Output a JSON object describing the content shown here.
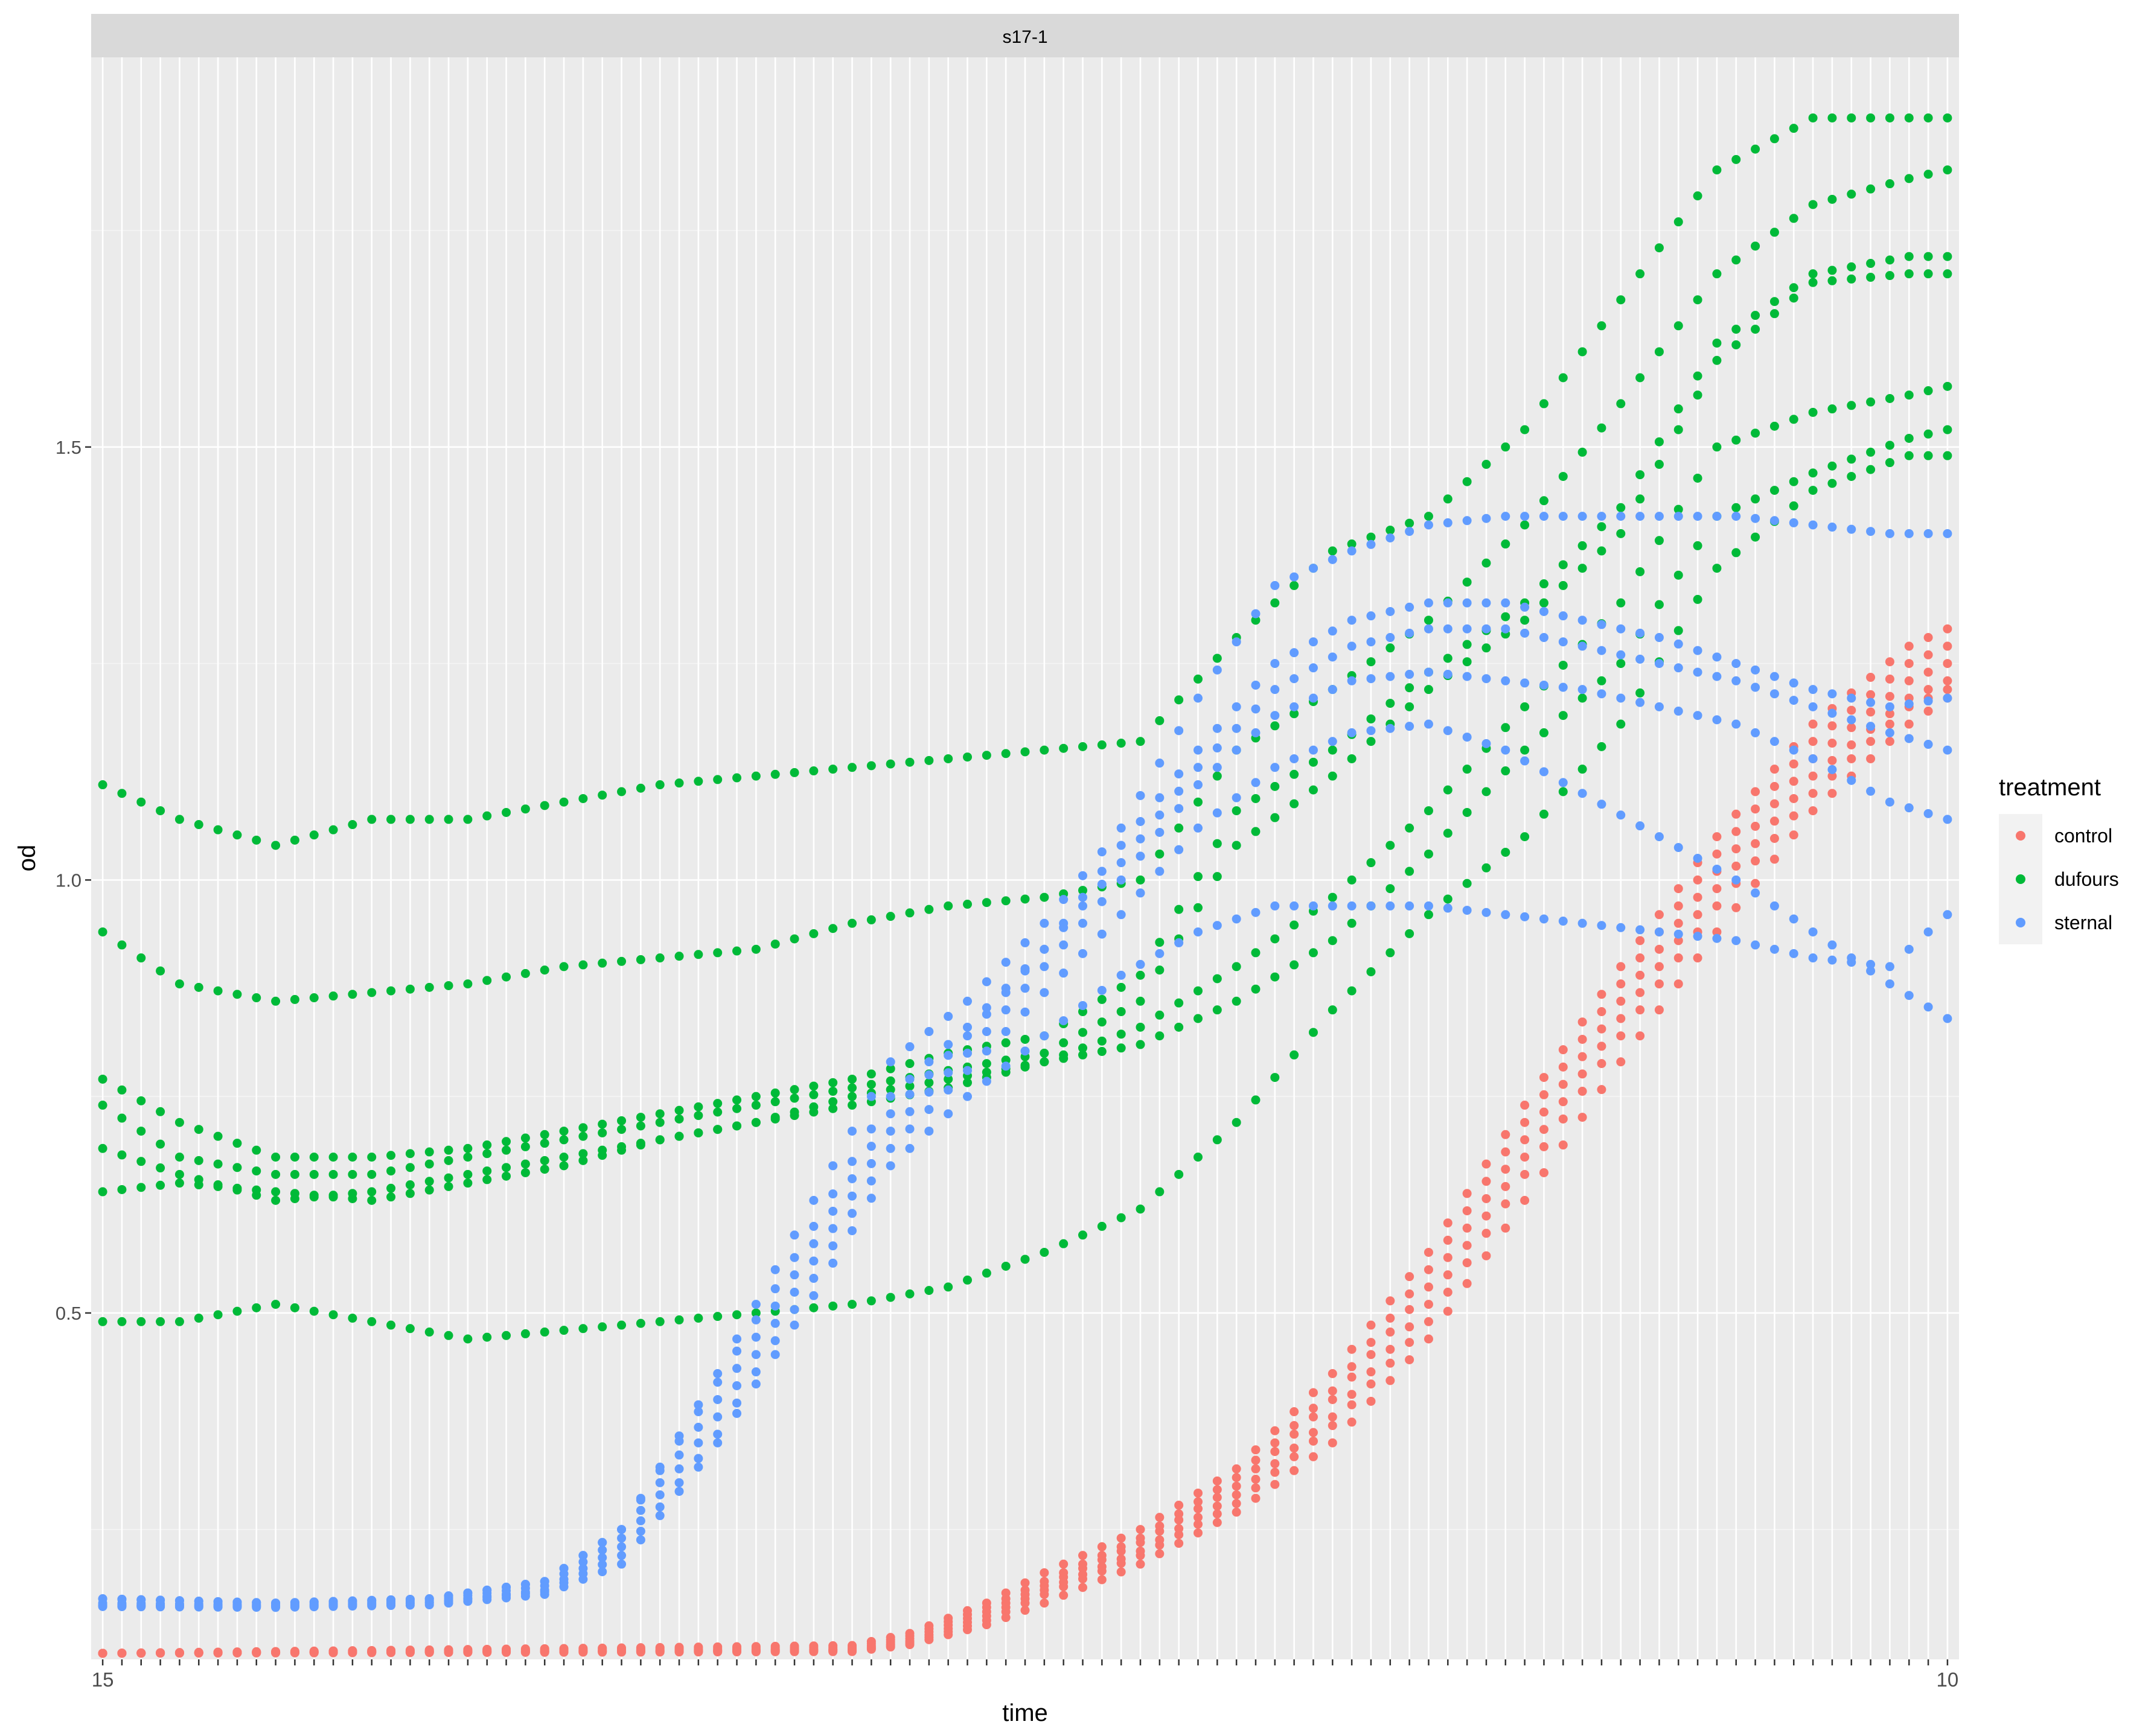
{
  "chart_data": {
    "type": "scatter",
    "facet_label": "s17-1",
    "xlabel": "time",
    "ylabel": "od",
    "x_axis_kind": "discrete",
    "x_count": 97,
    "x_tick_labels_note": "97 overlapping numeric time labels starting at 15 and ending at 10",
    "x_first": "15",
    "x_last": "10",
    "yticks": [
      0.5,
      1.0,
      1.5
    ],
    "ytick_labels": [
      "0.5",
      "1.0",
      "1.5"
    ],
    "ylim": [
      0.1,
      1.95
    ],
    "grid": true,
    "legend": {
      "title": "treatment",
      "position": "right",
      "items": [
        {
          "label": "control",
          "color": "#F8766D"
        },
        {
          "label": "dufours",
          "color": "#00BA38"
        },
        {
          "label": "sternal",
          "color": "#619CFF"
        }
      ]
    },
    "series": [
      {
        "name": "control",
        "color": "#F8766D",
        "curves": [
          {
            "x": [
              1,
              40,
              43,
              47,
              50,
              55,
              60,
              65,
              70,
              75,
              80,
              85,
              90,
              95,
              97
            ],
            "y": [
              0.107,
              0.116,
              0.13,
              0.165,
              0.2,
              0.25,
              0.32,
              0.43,
              0.57,
              0.74,
              0.9,
              1.05,
              1.18,
              1.27,
              1.29
            ]
          },
          {
            "x": [
              1,
              40,
              43,
              47,
              50,
              55,
              60,
              65,
              70,
              75,
              80,
              85,
              90,
              95,
              97
            ],
            "y": [
              0.107,
              0.114,
              0.127,
              0.16,
              0.19,
              0.24,
              0.31,
              0.41,
              0.55,
              0.72,
              0.88,
              1.03,
              1.16,
              1.25,
              1.27
            ]
          },
          {
            "x": [
              1,
              40,
              43,
              47,
              50,
              55,
              60,
              65,
              70,
              75,
              80,
              85,
              90,
              95,
              97
            ],
            "y": [
              0.107,
              0.112,
              0.124,
              0.155,
              0.185,
              0.235,
              0.3,
              0.4,
              0.53,
              0.7,
              0.86,
              1.01,
              1.14,
              1.23,
              1.25
            ]
          },
          {
            "x": [
              1,
              40,
              43,
              47,
              50,
              55,
              60,
              65,
              70,
              75,
              80,
              85,
              90,
              95,
              97
            ],
            "y": [
              0.107,
              0.111,
              0.121,
              0.15,
              0.18,
              0.225,
              0.29,
              0.38,
              0.51,
              0.68,
              0.84,
              0.99,
              1.12,
              1.21,
              1.23
            ]
          },
          {
            "x": [
              1,
              40,
              43,
              47,
              50,
              55,
              60,
              65,
              70,
              75,
              80,
              85,
              90,
              95,
              97
            ],
            "y": [
              0.107,
              0.11,
              0.119,
              0.145,
              0.175,
              0.22,
              0.28,
              0.37,
              0.49,
              0.66,
              0.82,
              0.97,
              1.1,
              1.2,
              1.22
            ]
          },
          {
            "x": [
              1,
              40,
              43,
              47,
              50,
              55,
              60,
              65,
              70,
              75,
              80,
              85,
              90,
              95,
              97
            ],
            "y": [
              0.107,
              0.109,
              0.117,
              0.14,
              0.165,
              0.21,
              0.27,
              0.35,
              0.47,
              0.63,
              0.79,
              0.94,
              1.08,
              1.18,
              1.21
            ]
          }
        ]
      },
      {
        "name": "dufours",
        "color": "#00BA38",
        "curves": [
          {
            "x": [
              1,
              5,
              10,
              15,
              20,
              25,
              30,
              35,
              40,
              45,
              50,
              55,
              60,
              65,
              70,
              75,
              80,
              85,
              90,
              95,
              97
            ],
            "y": [
              1.11,
              1.07,
              1.04,
              1.07,
              1.07,
              1.09,
              1.11,
              1.12,
              1.13,
              1.14,
              1.15,
              1.16,
              1.28,
              1.38,
              1.42,
              1.52,
              1.67,
              1.82,
              1.88,
              1.88,
              1.88
            ]
          },
          {
            "x": [
              1,
              5,
              10,
              15,
              20,
              25,
              30,
              35,
              40,
              45,
              50,
              55,
              60,
              65,
              70,
              75,
              80,
              85,
              90,
              95,
              97
            ],
            "y": [
              0.94,
              0.88,
              0.86,
              0.87,
              0.88,
              0.9,
              0.91,
              0.92,
              0.95,
              0.97,
              0.98,
              1.0,
              1.15,
              1.22,
              1.3,
              1.41,
              1.55,
              1.7,
              1.78,
              1.81,
              1.82
            ]
          },
          {
            "x": [
              1,
              5,
              10,
              15,
              20,
              25,
              30,
              35,
              40,
              45,
              50,
              55,
              60,
              65,
              70,
              75,
              80,
              85,
              90,
              95,
              97
            ],
            "y": [
              0.77,
              0.72,
              0.68,
              0.68,
              0.69,
              0.71,
              0.73,
              0.75,
              0.77,
              0.8,
              0.82,
              0.89,
              1.08,
              1.15,
              1.24,
              1.32,
              1.43,
              1.62,
              1.7,
              1.72,
              1.72
            ]
          },
          {
            "x": [
              1,
              5,
              10,
              15,
              20,
              25,
              30,
              35,
              40,
              45,
              50,
              55,
              60,
              65,
              70,
              75,
              80,
              85,
              90,
              95,
              97
            ],
            "y": [
              0.74,
              0.68,
              0.66,
              0.66,
              0.68,
              0.7,
              0.72,
              0.74,
              0.76,
              0.78,
              0.8,
              0.86,
              1.04,
              1.12,
              1.22,
              1.3,
              1.4,
              1.6,
              1.69,
              1.7,
              1.7
            ]
          },
          {
            "x": [
              1,
              5,
              10,
              15,
              20,
              25,
              30,
              35,
              40,
              45,
              50,
              55,
              60,
              65,
              70,
              75,
              80,
              85,
              90,
              95,
              97
            ],
            "y": [
              0.69,
              0.66,
              0.63,
              0.64,
              0.66,
              0.68,
              0.7,
              0.72,
              0.75,
              0.77,
              0.79,
              0.83,
              0.9,
              0.98,
              1.08,
              1.2,
              1.32,
              1.5,
              1.54,
              1.56,
              1.57
            ]
          },
          {
            "x": [
              1,
              5,
              10,
              15,
              20,
              25,
              30,
              35,
              40,
              45,
              50,
              55,
              60,
              65,
              70,
              75,
              80,
              85,
              90,
              95,
              97
            ],
            "y": [
              0.64,
              0.65,
              0.64,
              0.63,
              0.65,
              0.67,
              0.7,
              0.72,
              0.74,
              0.76,
              0.79,
              0.81,
              0.86,
              0.93,
              1.03,
              1.15,
              1.25,
              1.42,
              1.47,
              1.51,
              1.52
            ]
          },
          {
            "x": [
              1,
              5,
              10,
              15,
              20,
              25,
              30,
              35,
              40,
              45,
              50,
              55,
              60,
              65,
              70,
              75,
              80,
              85,
              90,
              95,
              97
            ],
            "y": [
              0.49,
              0.49,
              0.51,
              0.49,
              0.47,
              0.48,
              0.49,
              0.5,
              0.51,
              0.53,
              0.57,
              0.62,
              0.72,
              0.85,
              0.96,
              1.05,
              1.18,
              1.36,
              1.45,
              1.49,
              1.49
            ]
          }
        ]
      },
      {
        "name": "sternal",
        "color": "#619CFF",
        "curves": [
          {
            "x": [
              1,
              10,
              18,
              24,
              28,
              33,
              38,
              42,
              46,
              50,
              54,
              58,
              62,
              66,
              70,
              74,
              78,
              82,
              86,
              90,
              94,
              97
            ],
            "y": [
              0.17,
              0.165,
              0.17,
              0.19,
              0.25,
              0.43,
              0.63,
              0.79,
              0.86,
              0.95,
              1.06,
              1.21,
              1.34,
              1.38,
              1.41,
              1.42,
              1.42,
              1.42,
              1.42,
              1.41,
              1.4,
              1.4
            ]
          },
          {
            "x": [
              1,
              10,
              18,
              24,
              28,
              33,
              38,
              42,
              46,
              50,
              54,
              58,
              62,
              66,
              70,
              74,
              78,
              82,
              86,
              90,
              94,
              97
            ],
            "y": [
              0.17,
              0.165,
              0.17,
              0.19,
              0.25,
              0.42,
              0.6,
              0.75,
              0.83,
              0.92,
              1.04,
              1.15,
              1.25,
              1.3,
              1.32,
              1.32,
              1.3,
              1.28,
              1.25,
              1.22,
              1.2,
              1.21
            ]
          },
          {
            "x": [
              1,
              10,
              18,
              24,
              28,
              33,
              38,
              42,
              46,
              50,
              54,
              58,
              62,
              66,
              70,
              74,
              78,
              82,
              86,
              90,
              94,
              97
            ],
            "y": [
              0.165,
              0.163,
              0.168,
              0.185,
              0.24,
              0.4,
              0.58,
              0.73,
              0.82,
              0.92,
              1.02,
              1.13,
              1.22,
              1.27,
              1.29,
              1.29,
              1.27,
              1.25,
              1.23,
              1.2,
              1.17,
              1.15
            ]
          },
          {
            "x": [
              1,
              10,
              18,
              24,
              28,
              33,
              38,
              42,
              46,
              50,
              54,
              58,
              62,
              66,
              70,
              74,
              78,
              82,
              86,
              90,
              94,
              97
            ],
            "y": [
              0.163,
              0.162,
              0.166,
              0.18,
              0.23,
              0.38,
              0.56,
              0.71,
              0.8,
              0.9,
              1.0,
              1.11,
              1.19,
              1.23,
              1.24,
              1.23,
              1.22,
              1.2,
              1.18,
              1.14,
              1.09,
              1.07
            ]
          },
          {
            "x": [
              1,
              10,
              18,
              24,
              28,
              33,
              38,
              42,
              46,
              50,
              54,
              58,
              62,
              66,
              70,
              74,
              78,
              82,
              86,
              90,
              94,
              97
            ],
            "y": [
              0.162,
              0.161,
              0.165,
              0.178,
              0.22,
              0.36,
              0.54,
              0.69,
              0.78,
              0.87,
              0.96,
              1.06,
              1.13,
              1.17,
              1.18,
              1.15,
              1.1,
              1.05,
              1.0,
              0.94,
              0.88,
              0.84
            ]
          },
          {
            "x": [
              1,
              10,
              18,
              24,
              28,
              33,
              38,
              42,
              46,
              50,
              54,
              58,
              62,
              66,
              70,
              74,
              78,
              82,
              86,
              90,
              94,
              97
            ],
            "y": [
              0.161,
              0.16,
              0.163,
              0.175,
              0.21,
              0.35,
              0.52,
              0.67,
              0.75,
              0.82,
              0.89,
              0.94,
              0.97,
              0.97,
              0.97,
              0.96,
              0.95,
              0.94,
              0.93,
              0.91,
              0.9,
              0.96
            ]
          }
        ]
      }
    ]
  }
}
